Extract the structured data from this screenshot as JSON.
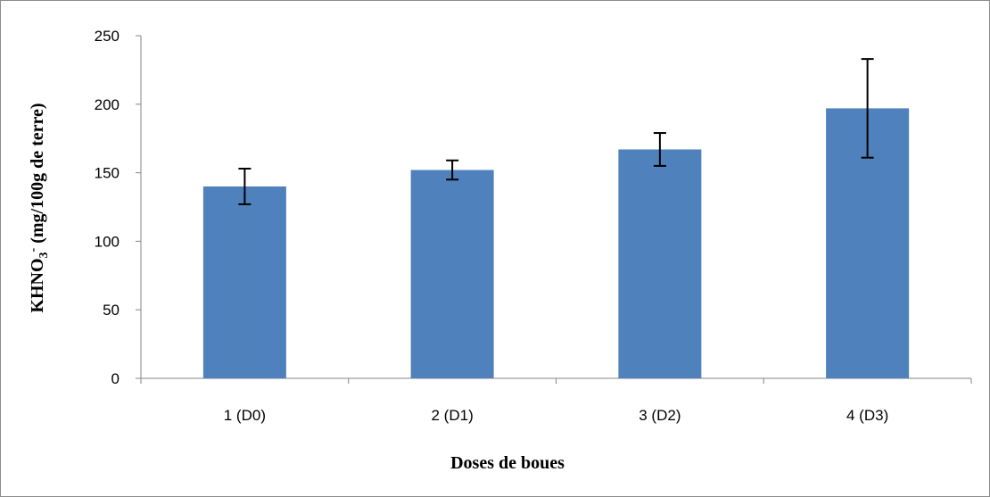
{
  "chart_data": {
    "type": "bar",
    "title": "",
    "xlabel": "Doses de boues",
    "ylabel": {
      "base": "KHNO",
      "subscript": "3",
      "superscript": "-",
      "rest": " (mg/100g de terre)"
    },
    "categories": [
      "1 (D0)",
      "2 (D1)",
      "3 (D2)",
      "4 (D3)"
    ],
    "values": [
      140,
      152,
      167,
      197
    ],
    "error_bars": [
      {
        "low": 127,
        "high": 153
      },
      {
        "low": 145,
        "high": 159
      },
      {
        "low": 155,
        "high": 179
      },
      {
        "low": 161,
        "high": 233
      }
    ],
    "ylim": [
      0,
      250
    ],
    "yticks": [
      0,
      50,
      100,
      150,
      200,
      250
    ],
    "bar_color": "#4f81bd",
    "grid": false,
    "legend": "none"
  }
}
